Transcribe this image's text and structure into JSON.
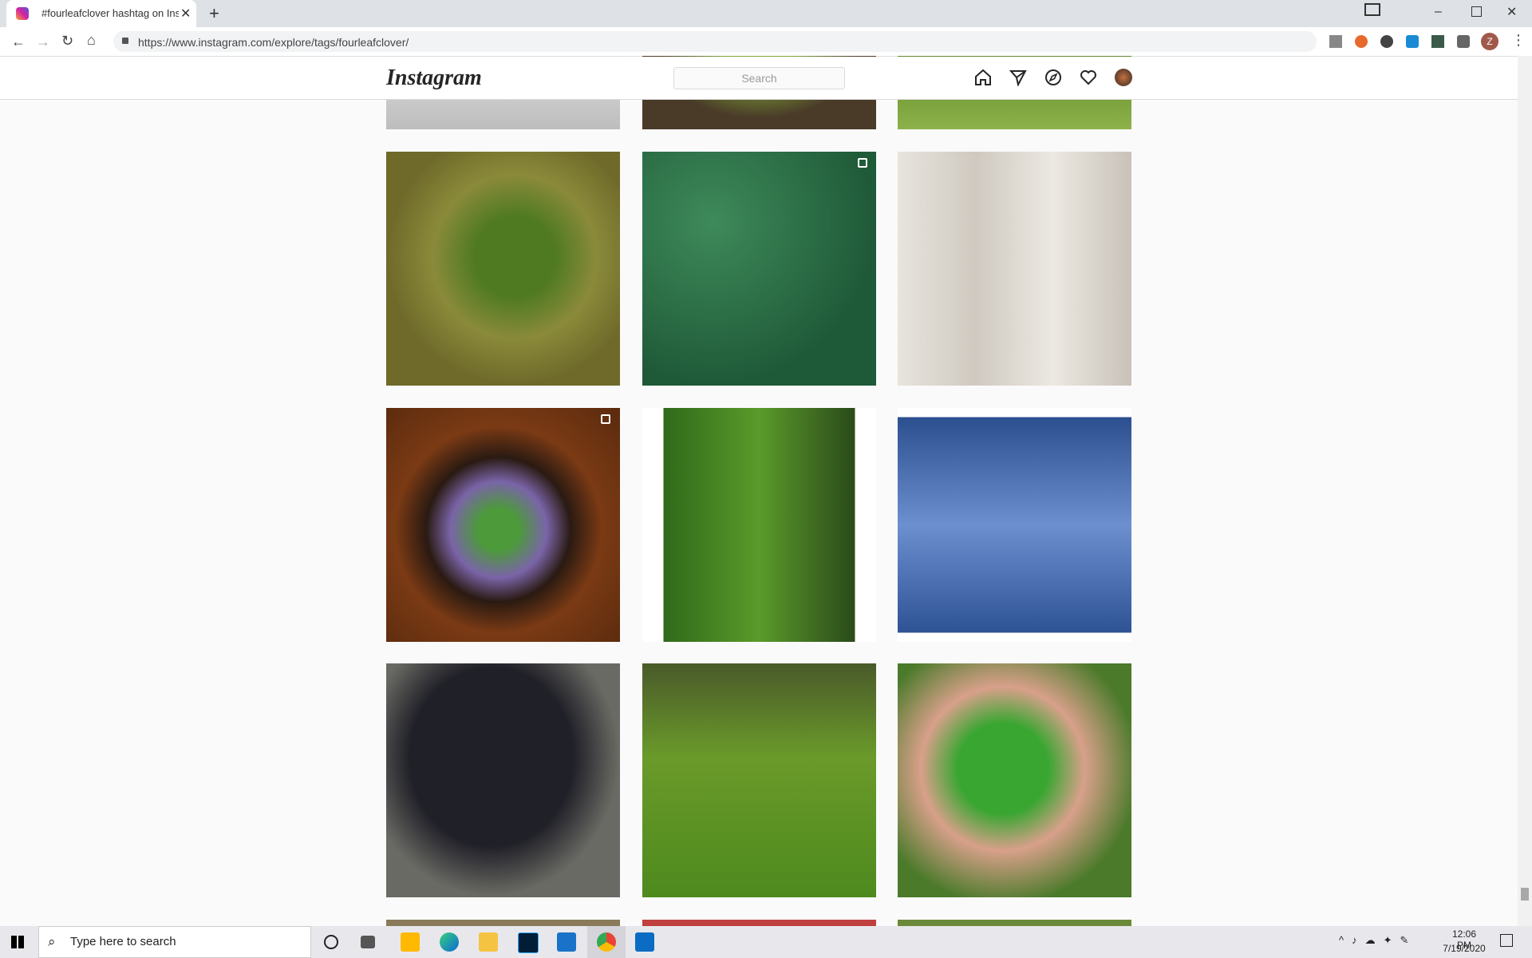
{
  "browser": {
    "tab_title": "#fourleafclover hashtag on Insta",
    "url": "https://www.instagram.com/explore/tags/fourleafclover/",
    "profile_initial": "Z"
  },
  "header": {
    "logo": "Instagram",
    "search_placeholder": "Search"
  },
  "taskbar": {
    "search": "Type here to search",
    "time": "12:06 PM",
    "date": "7/19/2020"
  }
}
